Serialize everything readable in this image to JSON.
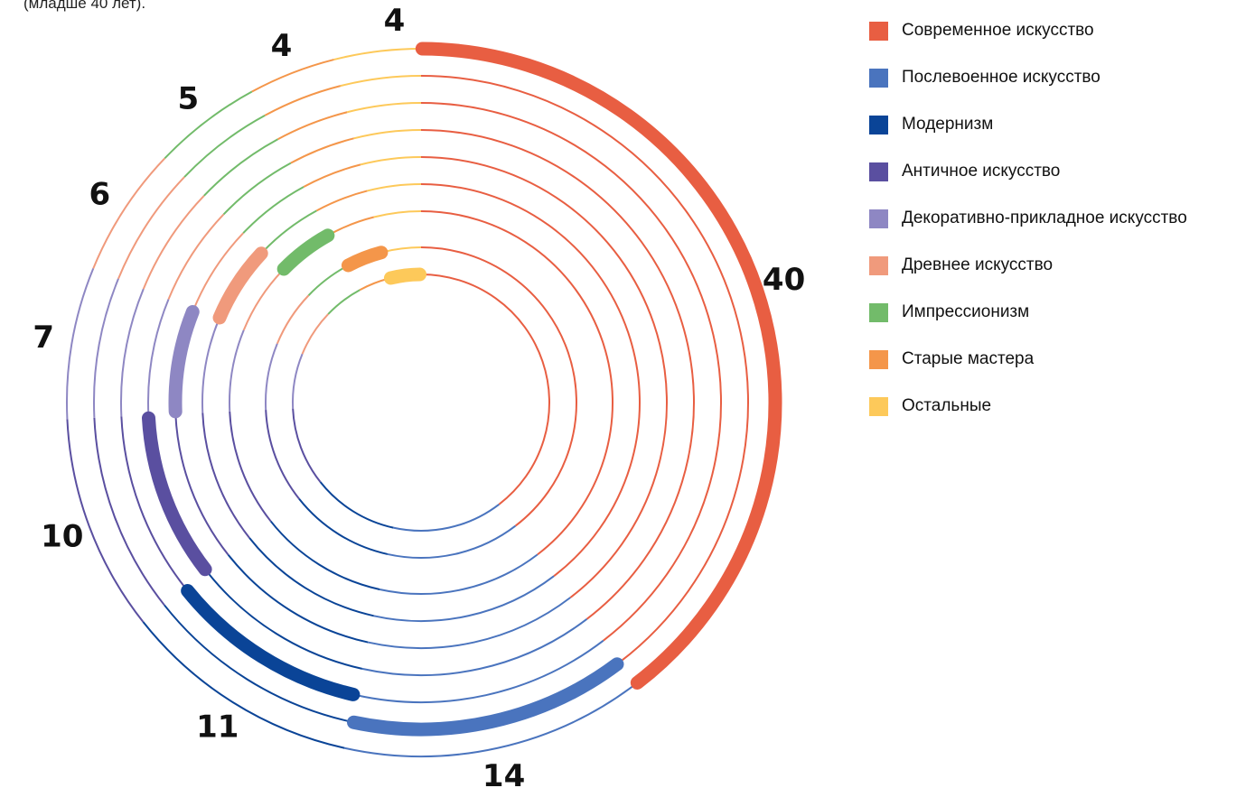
{
  "caption": "(младше 40 лет).",
  "chart_data": {
    "type": "radial-bar",
    "series": [
      {
        "name": "Современное искусство",
        "value": 40,
        "color": "#E85E42"
      },
      {
        "name": "Послевоенное искусство",
        "value": 14,
        "color": "#4A74BE"
      },
      {
        "name": "Модернизм",
        "value": 11,
        "color": "#0A4497"
      },
      {
        "name": "Античное искусство",
        "value": 10,
        "color": "#5A4FA0"
      },
      {
        "name": "Декоративно-прикладное искусство",
        "value": 7,
        "color": "#8E87C3"
      },
      {
        "name": "Древнее искусство",
        "value": 6,
        "color": "#F09A7C"
      },
      {
        "name": "Импрессионизм",
        "value": 5,
        "color": "#72BB6A"
      },
      {
        "name": "Старые мастера",
        "value": 4,
        "color": "#F4964A"
      },
      {
        "name": "Остальные",
        "value": 4,
        "color": "#FDC95A"
      }
    ],
    "legend_position": "right"
  }
}
